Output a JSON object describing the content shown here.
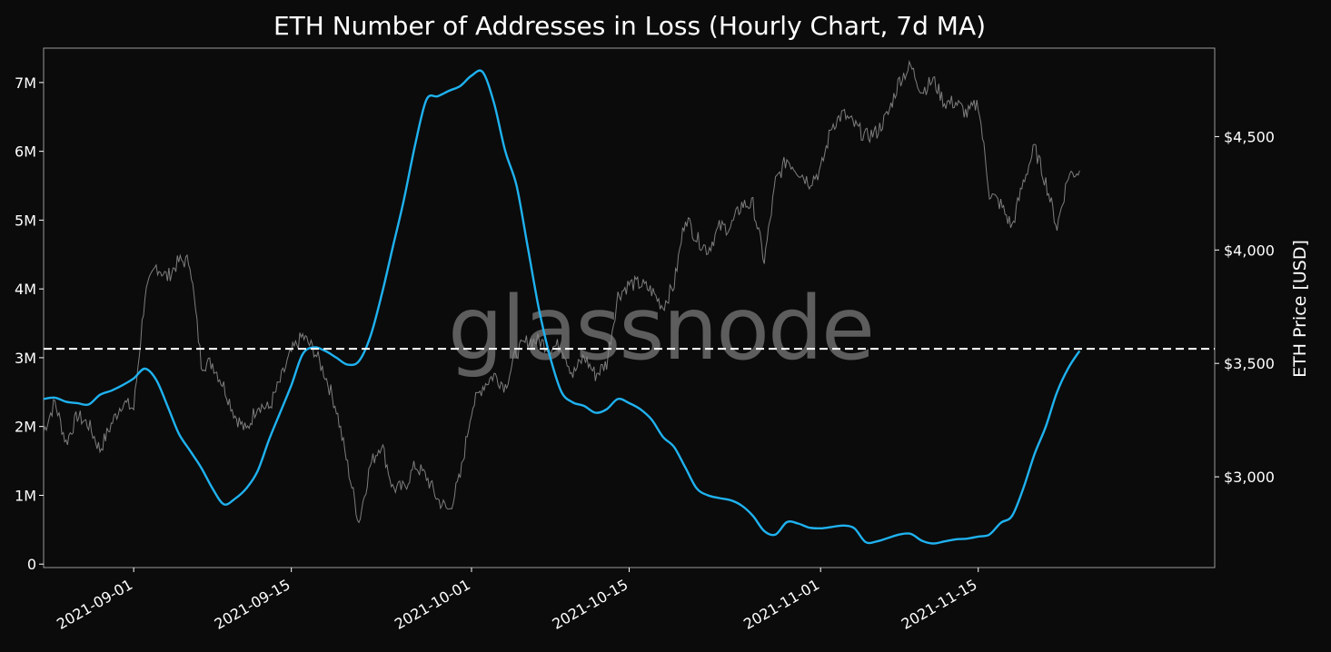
{
  "chart_data": {
    "type": "line",
    "title": "ETH Number of Addresses in Loss (Hourly Chart, 7d MA)",
    "watermark": "glassnode",
    "xlabel": "",
    "ylabel_left": "",
    "ylabel_right": "ETH Price [USD]",
    "grid": false,
    "x_tick_labels": [
      "2021-09-01",
      "2021-09-15",
      "2021-10-01",
      "2021-10-15",
      "2021-11-01",
      "2021-11-15"
    ],
    "x_range": [
      "2021-08-24",
      "2021-12-06"
    ],
    "y_left_ticks": [
      {
        "value": 0,
        "label": "0"
      },
      {
        "value": 1000000,
        "label": "1M"
      },
      {
        "value": 2000000,
        "label": "2M"
      },
      {
        "value": 3000000,
        "label": "3M"
      },
      {
        "value": 4000000,
        "label": "4M"
      },
      {
        "value": 5000000,
        "label": "5M"
      },
      {
        "value": 6000000,
        "label": "6M"
      },
      {
        "value": 7000000,
        "label": "7M"
      }
    ],
    "y_left_range": [
      -50000,
      7500000
    ],
    "y_right_ticks": [
      {
        "value": 3000,
        "label": "$3,000"
      },
      {
        "value": 3500,
        "label": "$3,500"
      },
      {
        "value": 4000,
        "label": "$4,000"
      },
      {
        "value": 4500,
        "label": "$4,500"
      }
    ],
    "y_right_range": [
      2600,
      4890
    ],
    "reference_line": {
      "axis": "left",
      "value": 3130000,
      "style": "dashed",
      "color": "#ffffff"
    },
    "series": [
      {
        "axis": "left",
        "color": "#1fb2f0",
        "points": [
          [
            "2021-08-24",
            2400000
          ],
          [
            "2021-08-25",
            2420000
          ],
          [
            "2021-08-26",
            2360000
          ],
          [
            "2021-08-27",
            2340000
          ],
          [
            "2021-08-28",
            2320000
          ],
          [
            "2021-08-29",
            2460000
          ],
          [
            "2021-08-30",
            2520000
          ],
          [
            "2021-08-31",
            2600000
          ],
          [
            "2021-09-01",
            2700000
          ],
          [
            "2021-09-02",
            2840000
          ],
          [
            "2021-09-03",
            2680000
          ],
          [
            "2021-09-04",
            2300000
          ],
          [
            "2021-09-05",
            1900000
          ],
          [
            "2021-09-06",
            1650000
          ],
          [
            "2021-09-07",
            1400000
          ],
          [
            "2021-09-08",
            1100000
          ],
          [
            "2021-09-09",
            870000
          ],
          [
            "2021-09-10",
            950000
          ],
          [
            "2021-09-11",
            1100000
          ],
          [
            "2021-09-12",
            1350000
          ],
          [
            "2021-09-13",
            1800000
          ],
          [
            "2021-09-14",
            2200000
          ],
          [
            "2021-09-15",
            2600000
          ],
          [
            "2021-09-16",
            3050000
          ],
          [
            "2021-09-17",
            3150000
          ],
          [
            "2021-09-18",
            3100000
          ],
          [
            "2021-09-19",
            3000000
          ],
          [
            "2021-09-20",
            2900000
          ],
          [
            "2021-09-21",
            2950000
          ],
          [
            "2021-09-22",
            3300000
          ],
          [
            "2021-09-23",
            3900000
          ],
          [
            "2021-09-24",
            4600000
          ],
          [
            "2021-09-25",
            5300000
          ],
          [
            "2021-09-26",
            6100000
          ],
          [
            "2021-09-27",
            6750000
          ],
          [
            "2021-09-28",
            6800000
          ],
          [
            "2021-09-29",
            6880000
          ],
          [
            "2021-09-30",
            6950000
          ],
          [
            "2021-10-01",
            7100000
          ],
          [
            "2021-10-02",
            7150000
          ],
          [
            "2021-10-03",
            6700000
          ],
          [
            "2021-10-04",
            6000000
          ],
          [
            "2021-10-05",
            5500000
          ],
          [
            "2021-10-06",
            4600000
          ],
          [
            "2021-10-07",
            3700000
          ],
          [
            "2021-10-08",
            3000000
          ],
          [
            "2021-10-09",
            2500000
          ],
          [
            "2021-10-10",
            2350000
          ],
          [
            "2021-10-11",
            2300000
          ],
          [
            "2021-10-12",
            2200000
          ],
          [
            "2021-10-13",
            2250000
          ],
          [
            "2021-10-14",
            2400000
          ],
          [
            "2021-10-15",
            2340000
          ],
          [
            "2021-10-16",
            2250000
          ],
          [
            "2021-10-17",
            2100000
          ],
          [
            "2021-10-18",
            1850000
          ],
          [
            "2021-10-19",
            1700000
          ],
          [
            "2021-10-20",
            1400000
          ],
          [
            "2021-10-21",
            1100000
          ],
          [
            "2021-10-22",
            1000000
          ],
          [
            "2021-10-23",
            960000
          ],
          [
            "2021-10-24",
            930000
          ],
          [
            "2021-10-25",
            850000
          ],
          [
            "2021-10-26",
            700000
          ],
          [
            "2021-10-27",
            480000
          ],
          [
            "2021-10-28",
            430000
          ],
          [
            "2021-10-29",
            610000
          ],
          [
            "2021-10-30",
            590000
          ],
          [
            "2021-10-31",
            530000
          ],
          [
            "2021-11-01",
            520000
          ],
          [
            "2021-11-02",
            540000
          ],
          [
            "2021-11-03",
            560000
          ],
          [
            "2021-11-04",
            520000
          ],
          [
            "2021-11-05",
            320000
          ],
          [
            "2021-11-06",
            330000
          ],
          [
            "2021-11-07",
            380000
          ],
          [
            "2021-11-08",
            430000
          ],
          [
            "2021-11-09",
            440000
          ],
          [
            "2021-11-10",
            340000
          ],
          [
            "2021-11-11",
            300000
          ],
          [
            "2021-11-12",
            330000
          ],
          [
            "2021-11-13",
            360000
          ],
          [
            "2021-11-14",
            370000
          ],
          [
            "2021-11-15",
            400000
          ],
          [
            "2021-11-16",
            430000
          ],
          [
            "2021-11-17",
            600000
          ],
          [
            "2021-11-18",
            700000
          ],
          [
            "2021-11-19",
            1100000
          ],
          [
            "2021-11-20",
            1600000
          ],
          [
            "2021-11-21",
            2000000
          ],
          [
            "2021-11-22",
            2500000
          ],
          [
            "2021-11-23",
            2850000
          ],
          [
            "2021-11-24",
            3100000
          ]
        ]
      },
      {
        "axis": "right",
        "color": "#8a8a8a",
        "points": [
          [
            "2021-08-24",
            3200
          ],
          [
            "2021-08-25",
            3330
          ],
          [
            "2021-08-26",
            3150
          ],
          [
            "2021-08-27",
            3270
          ],
          [
            "2021-08-28",
            3230
          ],
          [
            "2021-08-29",
            3120
          ],
          [
            "2021-08-30",
            3230
          ],
          [
            "2021-08-31",
            3330
          ],
          [
            "2021-09-01",
            3300
          ],
          [
            "2021-09-02",
            3800
          ],
          [
            "2021-09-03",
            3930
          ],
          [
            "2021-09-04",
            3880
          ],
          [
            "2021-09-05",
            3950
          ],
          [
            "2021-09-06",
            3950
          ],
          [
            "2021-09-07",
            3500
          ],
          [
            "2021-09-08",
            3500
          ],
          [
            "2021-09-09",
            3400
          ],
          [
            "2021-09-10",
            3270
          ],
          [
            "2021-09-11",
            3200
          ],
          [
            "2021-09-12",
            3320
          ],
          [
            "2021-09-13",
            3300
          ],
          [
            "2021-09-14",
            3420
          ],
          [
            "2021-09-15",
            3550
          ],
          [
            "2021-09-16",
            3620
          ],
          [
            "2021-09-17",
            3560
          ],
          [
            "2021-09-18",
            3450
          ],
          [
            "2021-09-19",
            3300
          ],
          [
            "2021-09-20",
            3050
          ],
          [
            "2021-09-21",
            2800
          ],
          [
            "2021-09-22",
            3050
          ],
          [
            "2021-09-23",
            3150
          ],
          [
            "2021-09-24",
            2950
          ],
          [
            "2021-09-25",
            2950
          ],
          [
            "2021-09-26",
            3050
          ],
          [
            "2021-09-27",
            3000
          ],
          [
            "2021-09-28",
            2900
          ],
          [
            "2021-09-29",
            2850
          ],
          [
            "2021-09-30",
            3000
          ],
          [
            "2021-10-01",
            3300
          ],
          [
            "2021-10-02",
            3400
          ],
          [
            "2021-10-03",
            3450
          ],
          [
            "2021-10-04",
            3400
          ],
          [
            "2021-10-05",
            3550
          ],
          [
            "2021-10-06",
            3600
          ],
          [
            "2021-10-07",
            3600
          ],
          [
            "2021-10-08",
            3570
          ],
          [
            "2021-10-09",
            3580
          ],
          [
            "2021-10-10",
            3450
          ],
          [
            "2021-10-11",
            3530
          ],
          [
            "2021-10-12",
            3450
          ],
          [
            "2021-10-13",
            3500
          ],
          [
            "2021-10-14",
            3800
          ],
          [
            "2021-10-15",
            3850
          ],
          [
            "2021-10-16",
            3850
          ],
          [
            "2021-10-17",
            3820
          ],
          [
            "2021-10-18",
            3750
          ],
          [
            "2021-10-19",
            3850
          ],
          [
            "2021-10-20",
            4150
          ],
          [
            "2021-10-21",
            4050
          ],
          [
            "2021-10-22",
            4000
          ],
          [
            "2021-10-23",
            4100
          ],
          [
            "2021-10-24",
            4100
          ],
          [
            "2021-10-25",
            4200
          ],
          [
            "2021-10-26",
            4200
          ],
          [
            "2021-10-27",
            3950
          ],
          [
            "2021-10-28",
            4300
          ],
          [
            "2021-10-29",
            4400
          ],
          [
            "2021-10-30",
            4350
          ],
          [
            "2021-10-31",
            4300
          ],
          [
            "2021-11-01",
            4350
          ],
          [
            "2021-11-02",
            4550
          ],
          [
            "2021-11-03",
            4600
          ],
          [
            "2021-11-04",
            4550
          ],
          [
            "2021-11-05",
            4500
          ],
          [
            "2021-11-06",
            4520
          ],
          [
            "2021-11-07",
            4600
          ],
          [
            "2021-11-08",
            4750
          ],
          [
            "2021-11-09",
            4810
          ],
          [
            "2021-11-10",
            4700
          ],
          [
            "2021-11-11",
            4750
          ],
          [
            "2021-11-12",
            4650
          ],
          [
            "2021-11-13",
            4650
          ],
          [
            "2021-11-14",
            4600
          ],
          [
            "2021-11-15",
            4650
          ],
          [
            "2021-11-16",
            4250
          ],
          [
            "2021-11-17",
            4200
          ],
          [
            "2021-11-18",
            4100
          ],
          [
            "2021-11-19",
            4300
          ],
          [
            "2021-11-20",
            4450
          ],
          [
            "2021-11-21",
            4300
          ],
          [
            "2021-11-22",
            4100
          ],
          [
            "2021-11-23",
            4330
          ],
          [
            "2021-11-24",
            4350
          ]
        ]
      }
    ]
  }
}
